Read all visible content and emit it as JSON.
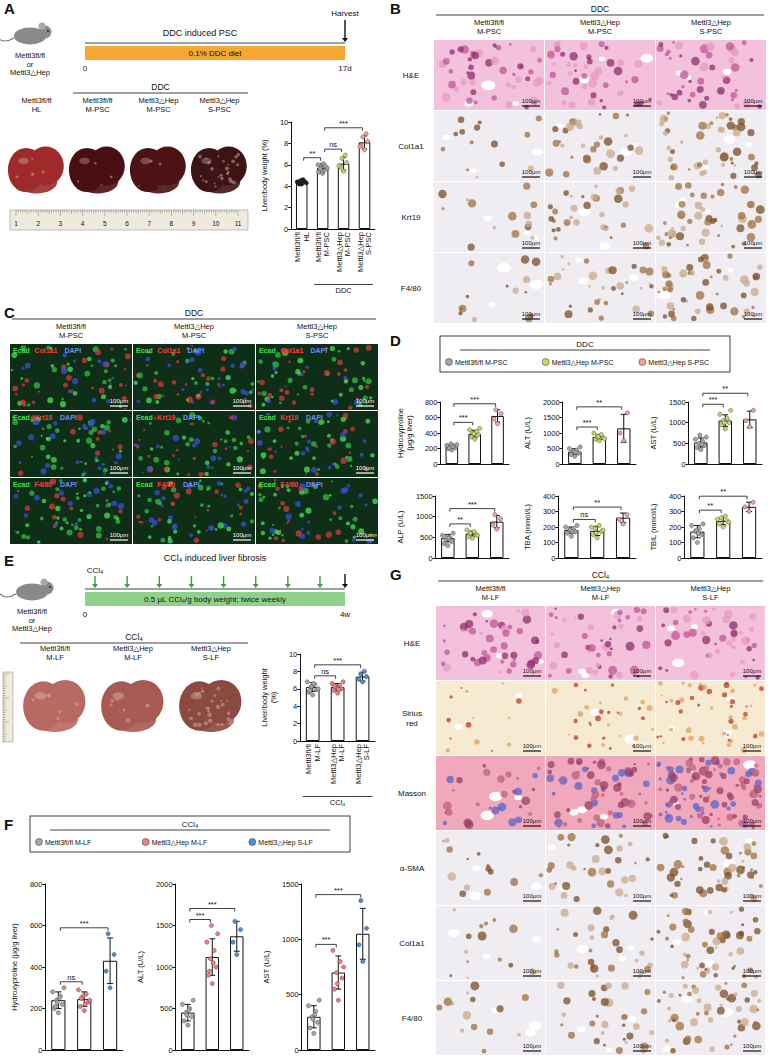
{
  "figure": {
    "A": {
      "letter": "A",
      "scheme": {
        "title": "DDC induced PSC",
        "harvest": "Harvest",
        "bar": "0.1% DDC diet",
        "start": "0",
        "end": "17d",
        "mouse": [
          "Mettl3fl/fl",
          "or",
          "Mettl3△Hep"
        ]
      },
      "photos": {
        "header": "DDC",
        "header_from": 1,
        "labels": [
          "Mettl3fl/fl HL",
          "Mettl3fl/fl M-PSC",
          "Mettl3△Hep M-PSC",
          "Mettl3△Hep S-PSC"
        ],
        "ruler": [
          1,
          2,
          3,
          4,
          5,
          6,
          7,
          8,
          9,
          10,
          11
        ]
      }
    },
    "B": {
      "letter": "B",
      "header": "DDC",
      "columns": [
        "Mettl3fl/fl M-PSC",
        "Mettl3△Hep M-PSC",
        "Mettl3△Hep S-PSC"
      ],
      "rows": [
        "H&E",
        "Col1a1",
        "Krt19",
        "F4/80"
      ],
      "scale": "100μm"
    },
    "C": {
      "letter": "C",
      "header": "DDC",
      "columns": [
        "Mettl3fl/fl M-PSC",
        "Mettl3△Hep M-PSC",
        "Mettl3△Hep S-PSC"
      ],
      "rows": [
        [
          "Ecad",
          "Col1a1",
          "DAPI"
        ],
        [
          "Ecad",
          "Krt19",
          "DAPI"
        ],
        [
          "Ecad",
          "F4/80",
          "DAPI"
        ]
      ],
      "scale": "100μm"
    },
    "D": {
      "letter": "D",
      "legend": {
        "title": "DDC",
        "items": [
          {
            "name": "Mettl3fl/fl M-PSC",
            "color": "#a6a6a6"
          },
          {
            "name": "Mettl3△Hep M-PSC",
            "color": "#c5d663"
          },
          {
            "name": "Mettl3△Hep S-PSC",
            "color": "#f2a19d"
          }
        ]
      }
    },
    "E": {
      "letter": "E",
      "scheme": {
        "title": "CCl₄ induced liver fibrosis",
        "agent": "CCl₄",
        "bar": "0.5 μL CCl₄/g body weight; twice weekly",
        "start": "0",
        "end": "4w",
        "injections": 8,
        "mouse": [
          "Mettl3fl/fl",
          "or",
          "Mettl3△Hep"
        ]
      },
      "photos": {
        "header": "CCl₄",
        "header_from": 0,
        "labels": [
          "Mettl3fl/fl M-LF",
          "Mettl3△Hep M-LF",
          "Mettl3△Hep S-LF"
        ]
      }
    },
    "F": {
      "letter": "F",
      "legend": {
        "title": "CCl₄",
        "items": [
          {
            "name": "Mettl3fl/fl M-LF",
            "color": "#a6a6a6"
          },
          {
            "name": "Mettl3△Hep M-LF",
            "color": "#f07f7f"
          },
          {
            "name": "Mettl3△Hep S-LF",
            "color": "#4f8fd6"
          }
        ]
      }
    },
    "G": {
      "letter": "G",
      "header": "CCl₄",
      "columns": [
        "Mettl3fl/fl M-LF",
        "Mettl3△Hep M-LF",
        "Mettl3△Hep S-LF"
      ],
      "rows": [
        "H&E",
        "Sirius red",
        "Masson",
        "α-SMA",
        "Col1a1",
        "F4/80"
      ],
      "scale": "100μm"
    }
  },
  "chart_data": [
    {
      "panel": "A",
      "type": "bar",
      "ylabel": "Liver/body weight (%)",
      "categories": [
        "Mettl3fl/fl HL",
        "Mettl3fl/fl M-PSC",
        "Mettl3△Hep M-PSC",
        "Mettl3△Hep S-PSC"
      ],
      "values": [
        4.4,
        5.7,
        6.1,
        8.1
      ],
      "errors": [
        0.2,
        0.4,
        0.6,
        0.6
      ],
      "points": [
        [
          4.2,
          4.3,
          4.4,
          4.5,
          4.6,
          4.4,
          4.3,
          4.5,
          4.6,
          4.2
        ],
        [
          5.2,
          5.5,
          5.6,
          5.8,
          5.9,
          6.0,
          5.7,
          5.4,
          6.1,
          5.6,
          5.9,
          5.3
        ],
        [
          5.4,
          5.8,
          6.2,
          6.6,
          6.9,
          5.9
        ],
        [
          7.4,
          7.8,
          8.2,
          8.6,
          8.9,
          7.7
        ]
      ],
      "colors": [
        "#1a1a1a",
        "#a6a6a6",
        "#c5d663",
        "#f2a19d"
      ],
      "ylim": [
        0,
        10
      ],
      "yticks": [
        0,
        2,
        4,
        6,
        8,
        10
      ],
      "grid": false,
      "significance": [
        {
          "from": 0,
          "to": 1,
          "label": "**"
        },
        {
          "from": 1,
          "to": 2,
          "label": "ns"
        },
        {
          "from": 1,
          "to": 3,
          "label": "***"
        }
      ],
      "group_label": {
        "text": "DDC",
        "from": 1,
        "to": 3
      }
    },
    {
      "panel": "D",
      "type": "bar",
      "ylabel": "Hydroxyproline (μg/g liver)",
      "categories": [
        null,
        null,
        null
      ],
      "values": [
        225,
        390,
        620
      ],
      "errors": [
        25,
        45,
        80
      ],
      "points": [
        [
          180,
          200,
          210,
          220,
          230,
          240,
          250,
          260,
          225,
          205
        ],
        [
          320,
          350,
          380,
          400,
          420,
          440,
          460,
          390
        ],
        [
          520,
          580,
          650,
          700
        ]
      ],
      "colors": [
        "#a6a6a6",
        "#c5d663",
        "#f2a19d"
      ],
      "ylim": [
        0,
        800
      ],
      "yticks": [
        0,
        200,
        400,
        600,
        800
      ],
      "grid": false,
      "tick_labels": "y",
      "significance": [
        {
          "from": 0,
          "to": 1,
          "label": "***"
        },
        {
          "from": 0,
          "to": 2,
          "label": "***"
        }
      ]
    },
    {
      "panel": "D",
      "type": "bar",
      "ylabel": "ALT (U/L)",
      "categories": [
        null,
        null,
        null
      ],
      "values": [
        400,
        870,
        1150
      ],
      "errors": [
        90,
        80,
        450
      ],
      "points": [
        [
          250,
          300,
          350,
          400,
          450,
          500,
          550,
          420,
          380
        ],
        [
          750,
          800,
          850,
          900,
          950,
          1000,
          820,
          880
        ],
        [
          750,
          1000,
          1650
        ]
      ],
      "colors": [
        "#a6a6a6",
        "#c5d663",
        "#f2a19d"
      ],
      "ylim": [
        0,
        2000
      ],
      "yticks": [
        0,
        500,
        1000,
        1500,
        2000
      ],
      "grid": false,
      "tick_labels": "y",
      "significance": [
        {
          "from": 0,
          "to": 1,
          "label": "***"
        },
        {
          "from": 0,
          "to": 2,
          "label": "**"
        }
      ]
    },
    {
      "panel": "D",
      "type": "bar",
      "ylabel": "AST (U/L)",
      "categories": [
        null,
        null,
        null
      ],
      "values": [
        520,
        1050,
        1080
      ],
      "errors": [
        110,
        140,
        200
      ],
      "points": [
        [
          350,
          400,
          450,
          500,
          550,
          600,
          650,
          700,
          480
        ],
        [
          850,
          950,
          1000,
          1050,
          1100,
          1200,
          1300,
          1000
        ],
        [
          900,
          1050,
          1300
        ]
      ],
      "colors": [
        "#a6a6a6",
        "#c5d663",
        "#f2a19d"
      ],
      "ylim": [
        0,
        1500
      ],
      "yticks": [
        0,
        500,
        1000,
        1500
      ],
      "grid": false,
      "tick_labels": "y",
      "significance": [
        {
          "from": 0,
          "to": 1,
          "label": "***"
        },
        {
          "from": 0,
          "to": 2,
          "label": "**"
        }
      ]
    },
    {
      "panel": "D",
      "type": "bar",
      "ylabel": "ALP (U/L)",
      "categories": [
        null,
        null,
        null
      ],
      "values": [
        480,
        590,
        880
      ],
      "errors": [
        90,
        60,
        150
      ],
      "points": [
        [
          300,
          350,
          400,
          450,
          500,
          550,
          600,
          520,
          480
        ],
        [
          480,
          520,
          560,
          600,
          640,
          680,
          550
        ],
        [
          700,
          800,
          950,
          1050
        ]
      ],
      "colors": [
        "#a6a6a6",
        "#c5d663",
        "#f2a19d"
      ],
      "ylim": [
        0,
        1500
      ],
      "yticks": [
        0,
        500,
        1000,
        1500
      ],
      "grid": false,
      "tick_labels": "y",
      "significance": [
        {
          "from": 0,
          "to": 1,
          "label": "**"
        },
        {
          "from": 0,
          "to": 2,
          "label": "***"
        }
      ]
    },
    {
      "panel": "D",
      "type": "bar",
      "ylabel": "TBA (mmol/L)",
      "categories": [
        null,
        null,
        null
      ],
      "values": [
        180,
        175,
        260
      ],
      "errors": [
        20,
        30,
        30
      ],
      "points": [
        [
          140,
          160,
          170,
          180,
          190,
          200,
          210,
          180,
          170
        ],
        [
          130,
          150,
          170,
          190,
          210,
          200,
          180,
          160
        ],
        [
          220,
          250,
          280
        ]
      ],
      "colors": [
        "#a6a6a6",
        "#c5d663",
        "#f2a19d"
      ],
      "ylim": [
        0,
        400
      ],
      "yticks": [
        0,
        100,
        200,
        300,
        400
      ],
      "grid": false,
      "tick_labels": "y",
      "significance": [
        {
          "from": 0,
          "to": 1,
          "label": "ns"
        },
        {
          "from": 0,
          "to": 2,
          "label": "**"
        }
      ]
    },
    {
      "panel": "D",
      "type": "bar",
      "ylabel": "TBIL (mmol/L)",
      "categories": [
        null,
        null,
        null
      ],
      "values": [
        170,
        240,
        330
      ],
      "errors": [
        40,
        25,
        30
      ],
      "points": [
        [
          100,
          130,
          150,
          170,
          190,
          210,
          220,
          180,
          160
        ],
        [
          200,
          220,
          240,
          260,
          270,
          250,
          230
        ],
        [
          300,
          330,
          360
        ]
      ],
      "colors": [
        "#a6a6a6",
        "#c5d663",
        "#f2a19d"
      ],
      "ylim": [
        0,
        400
      ],
      "yticks": [
        0,
        100,
        200,
        300,
        400
      ],
      "grid": false,
      "tick_labels": "y",
      "significance": [
        {
          "from": 0,
          "to": 1,
          "label": "**"
        },
        {
          "from": 0,
          "to": 2,
          "label": "**"
        }
      ]
    },
    {
      "panel": "E",
      "type": "bar",
      "ylabel": "Liver/body weight (%)",
      "categories": [
        "Mettl3fl/fl M-LF",
        "Mettl3△Hep M-LF",
        "Mettl3△Hep S-LF"
      ],
      "values": [
        6.2,
        6.2,
        7.4
      ],
      "errors": [
        0.5,
        0.4,
        0.5
      ],
      "points": [
        [
          5.3,
          5.6,
          5.9,
          6.2,
          6.5,
          6.8,
          6.0,
          6.3,
          6.6,
          5.8
        ],
        [
          5.5,
          5.8,
          6.0,
          6.2,
          6.4,
          6.6,
          6.8,
          6.1,
          5.9,
          6.3
        ],
        [
          6.8,
          7.1,
          7.4,
          7.7,
          8.0
        ]
      ],
      "colors": [
        "#a6a6a6",
        "#f07f7f",
        "#4f8fd6"
      ],
      "ylim": [
        0,
        10
      ],
      "yticks": [
        0,
        2,
        4,
        6,
        8,
        10
      ],
      "grid": false,
      "significance": [
        {
          "from": 0,
          "to": 1,
          "label": "ns"
        },
        {
          "from": 0,
          "to": 2,
          "label": "***"
        }
      ],
      "group_label": {
        "text": "CCl₄",
        "from": 0,
        "to": 2
      }
    },
    {
      "panel": "F",
      "type": "bar",
      "ylabel": "Hydroxyproline (μg/g liver)",
      "categories": [
        null,
        null,
        null
      ],
      "values": [
        240,
        245,
        430
      ],
      "errors": [
        40,
        35,
        110
      ],
      "points": [
        [
          180,
          200,
          220,
          240,
          260,
          280,
          300,
          230,
          250,
          210
        ],
        [
          190,
          210,
          230,
          250,
          270,
          290,
          240,
          260,
          220,
          250
        ],
        [
          300,
          380,
          460,
          560
        ]
      ],
      "colors": [
        "#a6a6a6",
        "#f07f7f",
        "#4f8fd6"
      ],
      "ylim": [
        0,
        800
      ],
      "yticks": [
        0,
        200,
        400,
        600,
        800
      ],
      "grid": false,
      "tick_labels": "y",
      "significance": [
        {
          "from": 0,
          "to": 1,
          "label": "ns"
        },
        {
          "from": 0,
          "to": 2,
          "label": "***"
        }
      ]
    },
    {
      "panel": "F",
      "type": "bar",
      "ylabel": "ALT (U/L)",
      "categories": [
        null,
        null,
        null
      ],
      "values": [
        450,
        1120,
        1370
      ],
      "errors": [
        100,
        220,
        180
      ],
      "points": [
        [
          300,
          350,
          400,
          450,
          500,
          550,
          600,
          420,
          480
        ],
        [
          800,
          900,
          1000,
          1100,
          1200,
          1300,
          1400,
          1500,
          1050,
          950
        ],
        [
          1150,
          1300,
          1450,
          1550
        ]
      ],
      "colors": [
        "#a6a6a6",
        "#f07f7f",
        "#4f8fd6"
      ],
      "ylim": [
        0,
        2000
      ],
      "yticks": [
        0,
        500,
        1000,
        1500,
        2000
      ],
      "grid": false,
      "tick_labels": "y",
      "significance": [
        {
          "from": 0,
          "to": 1,
          "label": "***"
        },
        {
          "from": 0,
          "to": 2,
          "label": "***"
        }
      ]
    },
    {
      "panel": "F",
      "type": "bar",
      "ylabel": "AST (U/L)",
      "categories": [
        null,
        null,
        null
      ],
      "values": [
        300,
        700,
        1050
      ],
      "errors": [
        100,
        150,
        230
      ],
      "points": [
        [
          150,
          200,
          250,
          300,
          350,
          400,
          450,
          280,
          320
        ],
        [
          450,
          550,
          650,
          700,
          800,
          900,
          750,
          600
        ],
        [
          800,
          950,
          1100,
          1350
        ]
      ],
      "colors": [
        "#a6a6a6",
        "#f07f7f",
        "#4f8fd6"
      ],
      "ylim": [
        0,
        1500
      ],
      "yticks": [
        0,
        500,
        1000,
        1500
      ],
      "grid": false,
      "tick_labels": "y",
      "significance": [
        {
          "from": 0,
          "to": 1,
          "label": "***"
        },
        {
          "from": 0,
          "to": 2,
          "label": "***"
        }
      ]
    }
  ]
}
